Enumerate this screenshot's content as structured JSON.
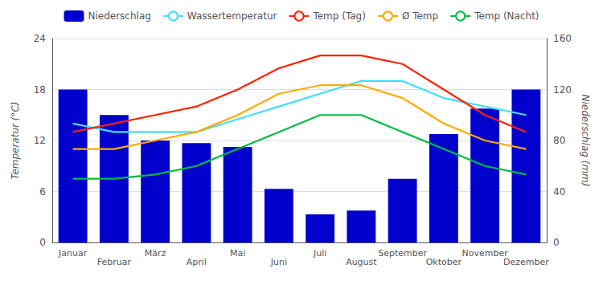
{
  "chart_data": {
    "type": "line",
    "categories": [
      "Januar",
      "Februar",
      "März",
      "April",
      "Mai",
      "Juni",
      "Juli",
      "August",
      "September",
      "Oktober",
      "November",
      "Dezember"
    ],
    "series": [
      {
        "name": "Niederschlag",
        "type": "bar",
        "axis": "y2",
        "color": "#0000cc",
        "values": [
          120,
          100,
          80,
          78,
          75,
          42,
          22,
          25,
          50,
          85,
          105,
          120
        ]
      },
      {
        "name": "Wassertemperatur",
        "type": "line",
        "color": "#44ddff",
        "values": [
          14.0,
          13.0,
          13.0,
          13.0,
          14.5,
          16.0,
          17.5,
          19.0,
          19.0,
          17.0,
          16.0,
          15.0
        ]
      },
      {
        "name": "Temp (Tag)",
        "type": "line",
        "color": "#ff2200",
        "values": [
          13.0,
          14.0,
          15.0,
          16.0,
          18.0,
          20.5,
          22.0,
          22.0,
          21.0,
          18.0,
          15.0,
          13.0
        ]
      },
      {
        "name": "Ø Temp",
        "type": "line",
        "color": "#ffaa00",
        "values": [
          11.0,
          11.0,
          12.0,
          13.0,
          15.0,
          17.5,
          18.5,
          18.5,
          17.0,
          14.0,
          12.0,
          11.0
        ]
      },
      {
        "name": "Temp (Nacht)",
        "type": "line",
        "color": "#00bb44",
        "values": [
          7.5,
          7.5,
          8.0,
          9.0,
          11.0,
          13.0,
          15.0,
          15.0,
          13.0,
          11.0,
          9.0,
          8.0
        ]
      }
    ],
    "ylabel": "Temperatur (°C)",
    "y2label": "Niederschlag (mm)",
    "ylim": [
      0,
      24
    ],
    "yticks": [
      0,
      6,
      12,
      18,
      24
    ],
    "y2lim": [
      0,
      160
    ],
    "y2ticks": [
      0,
      40,
      80,
      120,
      160
    ],
    "grid": true,
    "legend": "top"
  }
}
